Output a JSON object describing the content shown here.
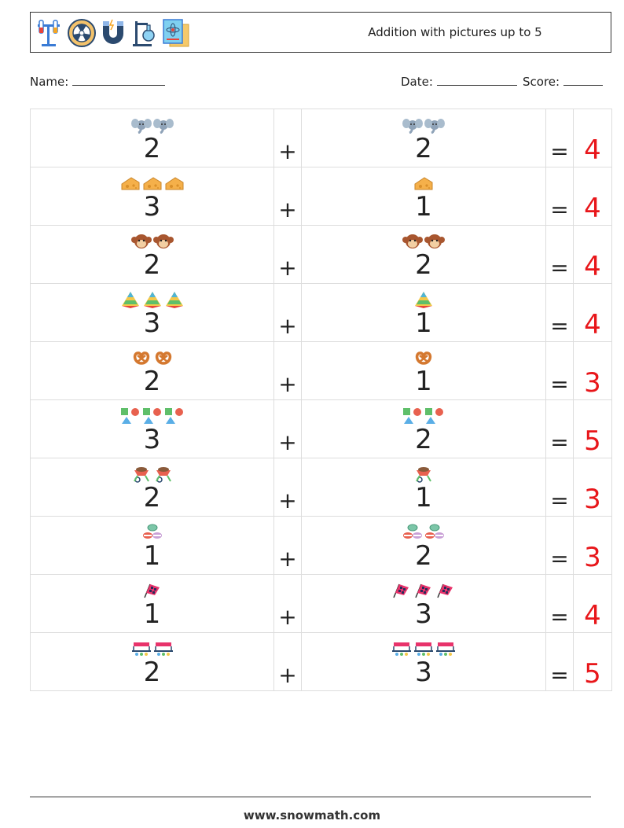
{
  "header": {
    "title": "Addition with pictures up to 5",
    "icons": [
      "test-tubes-icon",
      "radiation-icon",
      "magnet-icon",
      "lab-stand-icon",
      "atom-book-icon"
    ]
  },
  "info": {
    "name_label": "Name:",
    "date_label": "Date:",
    "score_label": "Score:"
  },
  "operators": {
    "plus": "+",
    "equals": "="
  },
  "rows": [
    {
      "pic": "elephant",
      "a": "2",
      "b": "2",
      "ans": "4"
    },
    {
      "pic": "cheese",
      "a": "3",
      "b": "1",
      "ans": "4"
    },
    {
      "pic": "monkey",
      "a": "2",
      "b": "2",
      "ans": "4"
    },
    {
      "pic": "pyramid",
      "a": "3",
      "b": "1",
      "ans": "4"
    },
    {
      "pic": "pretzel",
      "a": "2",
      "b": "1",
      "ans": "3"
    },
    {
      "pic": "shapes",
      "a": "3",
      "b": "2",
      "ans": "5"
    },
    {
      "pic": "wheelbarrow",
      "a": "2",
      "b": "1",
      "ans": "3"
    },
    {
      "pic": "macarons",
      "a": "1",
      "b": "2",
      "ans": "3"
    },
    {
      "pic": "checkered-flag",
      "a": "1",
      "b": "3",
      "ans": "4"
    },
    {
      "pic": "market-stall",
      "a": "2",
      "b": "3",
      "ans": "5"
    }
  ],
  "colors": {
    "answer": "#e8161a"
  },
  "footer": {
    "url": "www.snowmath.com"
  }
}
